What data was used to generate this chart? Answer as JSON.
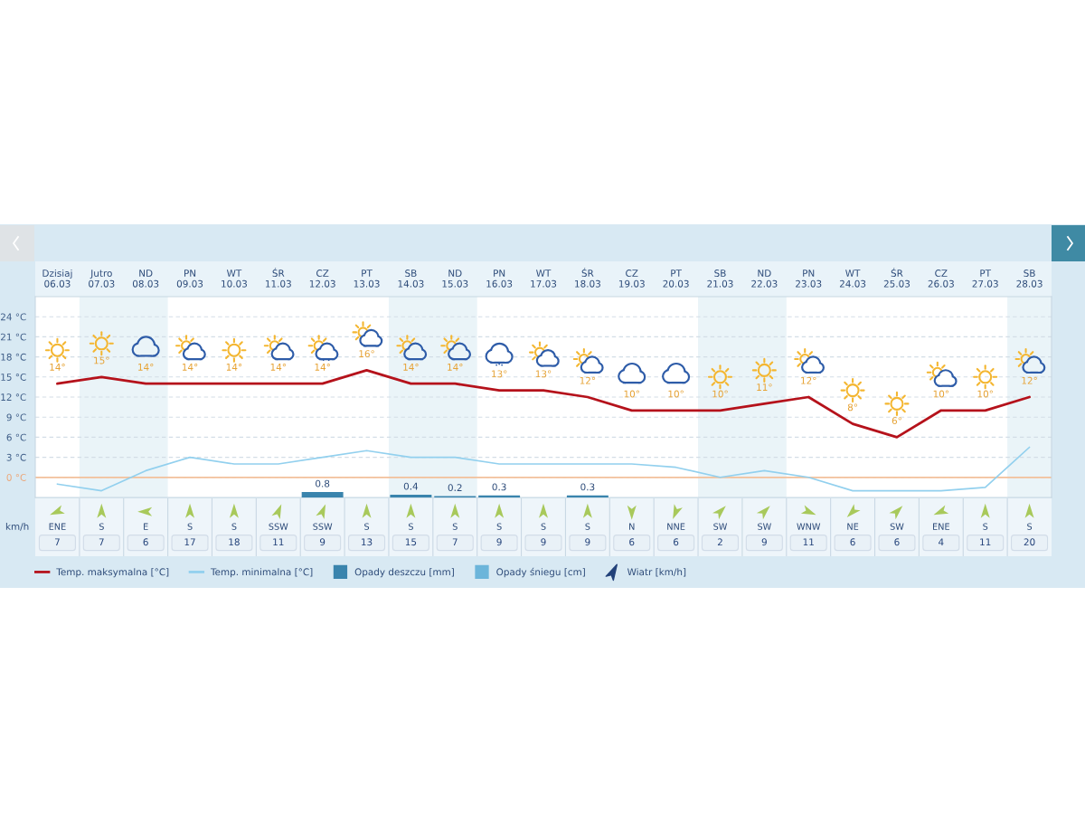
{
  "chart_data": [
    {
      "type": "line",
      "categories": [
        "Dzisiaj\n06.03",
        "Jutro\n07.03",
        "ND\n08.03",
        "PN\n09.03",
        "WT\n10.03",
        "ŚR\n11.03",
        "CZ\n12.03",
        "PT\n13.03",
        "SB\n14.03",
        "ND\n15.03",
        "PN\n16.03",
        "WT\n17.03",
        "ŚR\n18.03",
        "CZ\n19.03",
        "PT\n20.03",
        "SB\n21.03",
        "ND\n22.03",
        "PN\n23.03",
        "WT\n24.03",
        "ŚR\n25.03",
        "CZ\n26.03",
        "PT\n27.03",
        "SB\n28.03"
      ],
      "series": [
        {
          "name": "Temp. maksymalna [°C]",
          "type": "line",
          "color": "#b5121b",
          "values": [
            14,
            15,
            14,
            14,
            14,
            14,
            14,
            16,
            14,
            14,
            13,
            13,
            12,
            10,
            10,
            10,
            11,
            12,
            8,
            6,
            10,
            10,
            12
          ],
          "value_labels": [
            "14°",
            "15°",
            "14°",
            "14°",
            "14°",
            "14°",
            "14°",
            "16°",
            "14°",
            "14°",
            "13°",
            "13°",
            "12°",
            "10°",
            "10°",
            "10°",
            "11°",
            "12°",
            "8°",
            "6°",
            "10°",
            "10°",
            "12°"
          ]
        },
        {
          "name": "Temp. minimalna [°C]",
          "type": "line",
          "color": "#92d0ee",
          "values": [
            -1,
            -2,
            1,
            3,
            2,
            2,
            3,
            4,
            3,
            3,
            2,
            2,
            2,
            2,
            1.5,
            0,
            1,
            0,
            -2,
            -2,
            -2,
            -1.5,
            4.5
          ]
        },
        {
          "name": "Opady deszczu [mm]",
          "type": "bar",
          "axis": "y2",
          "color": "#3a84ad",
          "values": [
            null,
            null,
            null,
            null,
            null,
            null,
            0.8,
            null,
            0.4,
            0.2,
            0.3,
            null,
            0.3,
            null,
            null,
            null,
            null,
            null,
            null,
            null,
            null,
            null,
            null
          ],
          "value_labels": [
            null,
            null,
            null,
            null,
            null,
            null,
            "0.8",
            null,
            "0.4",
            "0.2",
            "0.3",
            null,
            "0.3",
            null,
            null,
            null,
            null,
            null,
            null,
            null,
            null,
            null,
            null
          ]
        },
        {
          "name": "Opady śniegu [cm]",
          "type": "bar",
          "axis": "y2",
          "color": "#6cb5da",
          "values": [
            null,
            null,
            null,
            null,
            null,
            null,
            null,
            null,
            null,
            null,
            null,
            null,
            null,
            null,
            null,
            null,
            null,
            null,
            null,
            null,
            null,
            null,
            null
          ]
        }
      ],
      "ylim": [
        -3,
        27
      ],
      "yticks": [
        {
          "value": 0,
          "label": "0 °C"
        },
        {
          "value": 3,
          "label": "3 °C"
        },
        {
          "value": 6,
          "label": "6 °C"
        },
        {
          "value": 9,
          "label": "9 °C"
        },
        {
          "value": 12,
          "label": "12 °C"
        },
        {
          "value": 15,
          "label": "15 °C"
        },
        {
          "value": 18,
          "label": "18 °C"
        },
        {
          "value": 21,
          "label": "21 °C"
        },
        {
          "value": 24,
          "label": "24 °C"
        }
      ],
      "y2lim": [
        0,
        30
      ],
      "grid": true,
      "legend": "bottom",
      "ref_lines": [
        {
          "axis": "y",
          "value": 0,
          "color": "#f3c19b"
        }
      ],
      "bands": [
        {
          "axis": "x",
          "from": "Jutro\n07.03",
          "to": "ND\n08.03",
          "color": "#eaf4f8"
        },
        {
          "axis": "x",
          "from": "SB\n14.03",
          "to": "ND\n15.03",
          "color": "#eaf4f8"
        },
        {
          "axis": "x",
          "from": "SB\n21.03",
          "to": "ND\n22.03",
          "color": "#eaf4f8"
        },
        {
          "axis": "x",
          "from": "SB\n28.03",
          "to": "SB\n28.03",
          "color": "#eaf4f8"
        }
      ]
    },
    {
      "type": "other",
      "categories": [
        "ENE",
        "S",
        "E",
        "S",
        "S",
        "SSW",
        "SSW",
        "S",
        "S",
        "S",
        "S",
        "S",
        "S",
        "N",
        "NNE",
        "SW",
        "SW",
        "WNW",
        "NE",
        "SW",
        "ENE",
        "S",
        "S"
      ],
      "ylabel": "km/h",
      "series": [
        {
          "name": "Wiatr [km/h]",
          "color": "#23427a",
          "values": [
            7,
            7,
            6,
            17,
            18,
            11,
            9,
            13,
            15,
            7,
            9,
            9,
            9,
            6,
            6,
            2,
            9,
            11,
            6,
            6,
            4,
            11,
            20
          ]
        }
      ],
      "data_labels": true,
      "legend": "bottom"
    }
  ]
}
